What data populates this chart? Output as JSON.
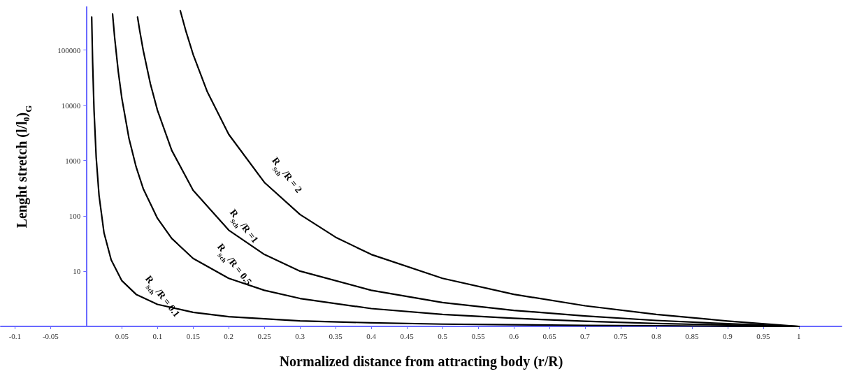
{
  "chart_data": {
    "type": "line",
    "xlabel": "Normalized distance from attracting body (r/R)",
    "ylabel": "Lenght stretch (l/l₀)$_{G}$",
    "xlim": [
      -0.12,
      1.06
    ],
    "xticks": [
      -0.1,
      -0.05,
      0.05,
      0.1,
      0.15,
      0.2,
      0.25,
      0.3,
      0.35,
      0.4,
      0.45,
      0.5,
      0.55,
      0.6,
      0.65,
      0.7,
      0.75,
      0.8,
      0.85,
      0.9,
      0.95,
      1
    ],
    "ylim": [
      1,
      600000
    ],
    "yticks": [
      10,
      100,
      1000,
      10000,
      100000
    ],
    "log": "y",
    "grid": false,
    "legend": false,
    "marker": "none",
    "line_style": "solid",
    "series": [
      {
        "name": "R$_{Sch}$/R = 0.1",
        "color": "#000000",
        "x": [
          0.0077,
          0.009,
          0.011,
          0.014,
          0.018,
          0.025,
          0.035,
          0.05,
          0.07,
          0.1,
          0.15,
          0.2,
          0.3,
          0.4,
          0.5,
          0.6,
          0.7,
          0.8,
          0.9,
          1
        ],
        "values": [
          395000,
          60500,
          8000,
          1140,
          234,
          49,
          16,
          6.7,
          3.8,
          2.5,
          1.8,
          1.5,
          1.26,
          1.16,
          1.1,
          1.07,
          1.04,
          1.03,
          1.01,
          1
        ]
      },
      {
        "name": "R$_{Sch}$/R = 0.5",
        "color": "#000000",
        "x": [
          0.037,
          0.04,
          0.045,
          0.05,
          0.06,
          0.07,
          0.08,
          0.1,
          0.12,
          0.15,
          0.2,
          0.25,
          0.3,
          0.4,
          0.5,
          0.6,
          0.7,
          0.8,
          0.9,
          1
        ],
        "values": [
          447000,
          163000,
          40500,
          13400,
          2520,
          770,
          310,
          90,
          39,
          17,
          7.4,
          4.5,
          3.2,
          2.1,
          1.65,
          1.4,
          1.24,
          1.13,
          1.06,
          1
        ]
      },
      {
        "name": "R$_{Sch}$/R =1",
        "color": "#000000",
        "x": [
          0.072,
          0.075,
          0.08,
          0.09,
          0.1,
          0.12,
          0.15,
          0.2,
          0.25,
          0.3,
          0.4,
          0.5,
          0.6,
          0.7,
          0.8,
          0.9,
          1
        ],
        "values": [
          396000,
          227000,
          98700,
          24600,
          8100,
          1530,
          290,
          55,
          20,
          10,
          4.5,
          2.7,
          1.95,
          1.54,
          1.28,
          1.12,
          1
        ]
      },
      {
        "name": "R$_{Sch}$/R = 2",
        "color": "#000000",
        "x": [
          0.132,
          0.14,
          0.15,
          0.17,
          0.2,
          0.25,
          0.3,
          0.35,
          0.4,
          0.5,
          0.6,
          0.7,
          0.8,
          0.9,
          1
        ],
        "values": [
          514000,
          217000,
          83400,
          17400,
          2980,
          403,
          106,
          41,
          20,
          7.4,
          3.8,
          2.36,
          1.65,
          1.25,
          1
        ]
      }
    ]
  }
}
